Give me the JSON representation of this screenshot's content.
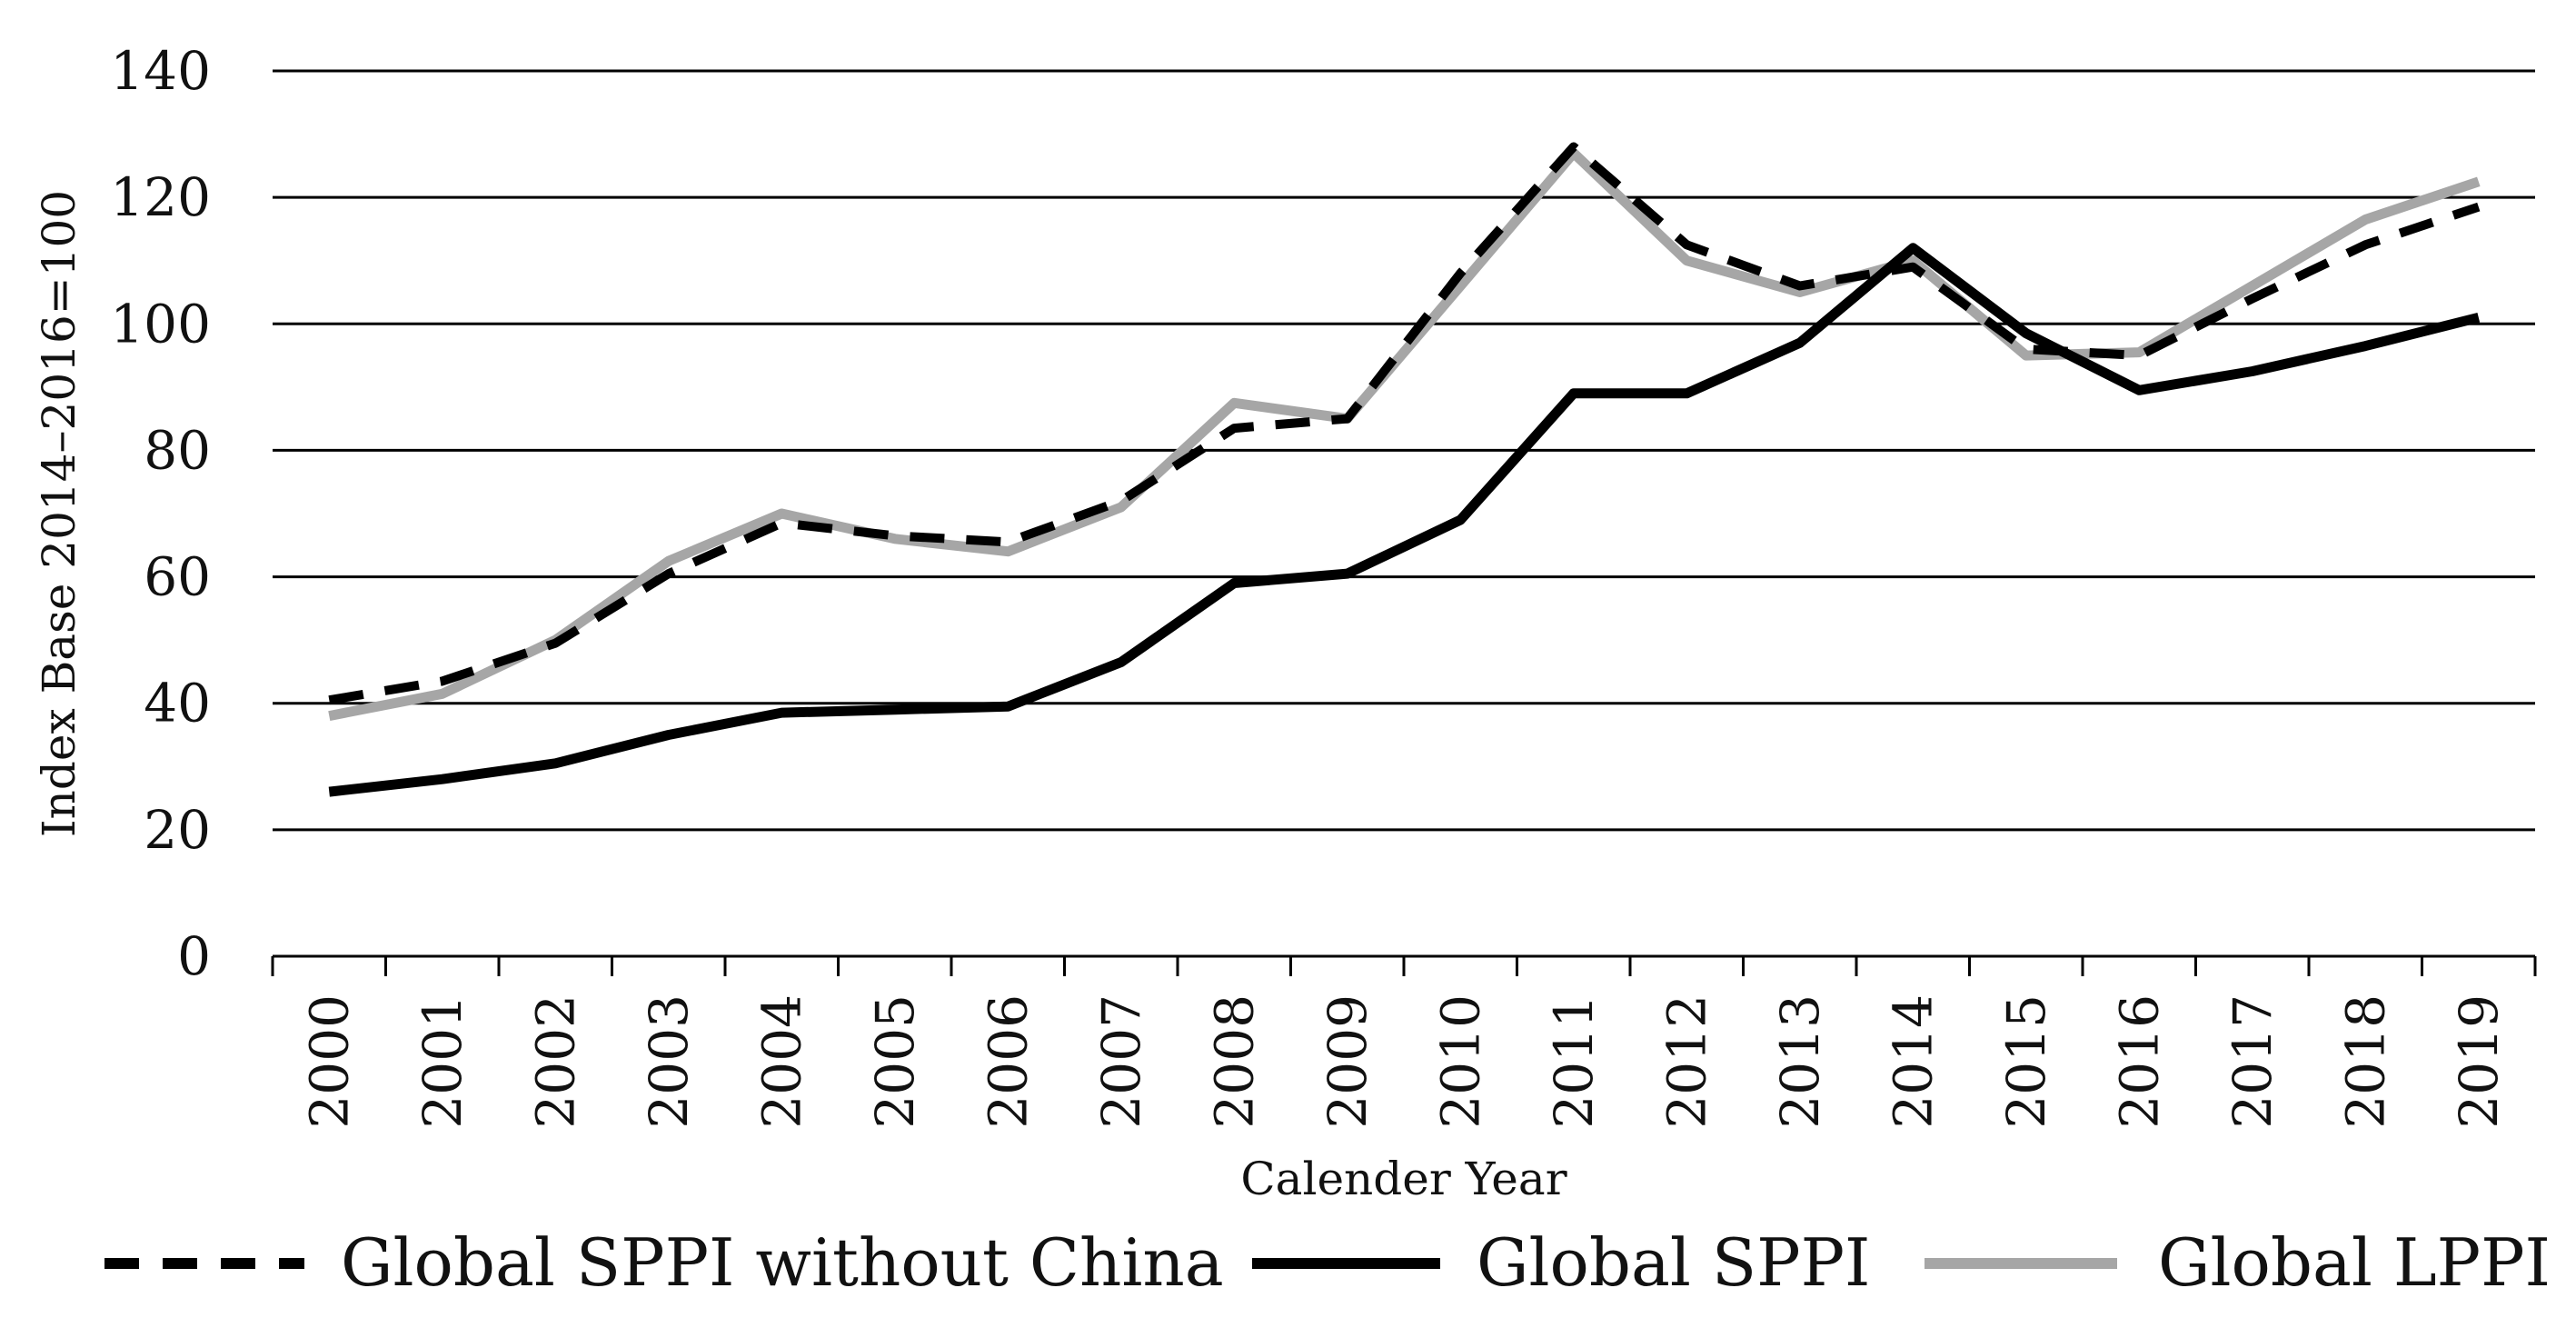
{
  "chart_data": {
    "type": "line",
    "title": "",
    "xlabel": "Calender Year",
    "ylabel": "Index Base 2014–2016=100",
    "ylim": [
      0,
      140
    ],
    "yticks": [
      "0",
      "20",
      "40",
      "60",
      "80",
      "100",
      "120",
      "140"
    ],
    "grid": true,
    "legend_position": "bottom",
    "categories": [
      "2000",
      "2001",
      "2002",
      "2003",
      "2004",
      "2005",
      "2006",
      "2007",
      "2008",
      "2009",
      "2010",
      "2011",
      "2012",
      "2013",
      "2014",
      "2015",
      "2016",
      "2017",
      "2018",
      "2019"
    ],
    "series": [
      {
        "name": "Global SPPI without China",
        "style": "dashed",
        "color": "#000000",
        "values": [
          40.5,
          43.5,
          49.5,
          60.5,
          68.5,
          66.5,
          65.5,
          72,
          83.5,
          85,
          108,
          128,
          112.5,
          106,
          109,
          96,
          95,
          104,
          112.5,
          118.5
        ]
      },
      {
        "name": "Global SPPI",
        "style": "solid",
        "color": "#000000",
        "values": [
          26,
          28,
          30.5,
          35,
          38.5,
          39,
          39.5,
          46.5,
          59,
          60.5,
          69,
          89,
          89,
          97,
          112,
          98.5,
          89.5,
          92.5,
          96.5,
          101
        ]
      },
      {
        "name": "Global LPPI",
        "style": "solid",
        "color": "#a6a6a6",
        "values": [
          38,
          41.5,
          50,
          62.5,
          70,
          66,
          64,
          71,
          87.5,
          85,
          106,
          127,
          110,
          105,
          110,
          95,
          95.5,
          106,
          116.5,
          122.5
        ]
      }
    ]
  }
}
